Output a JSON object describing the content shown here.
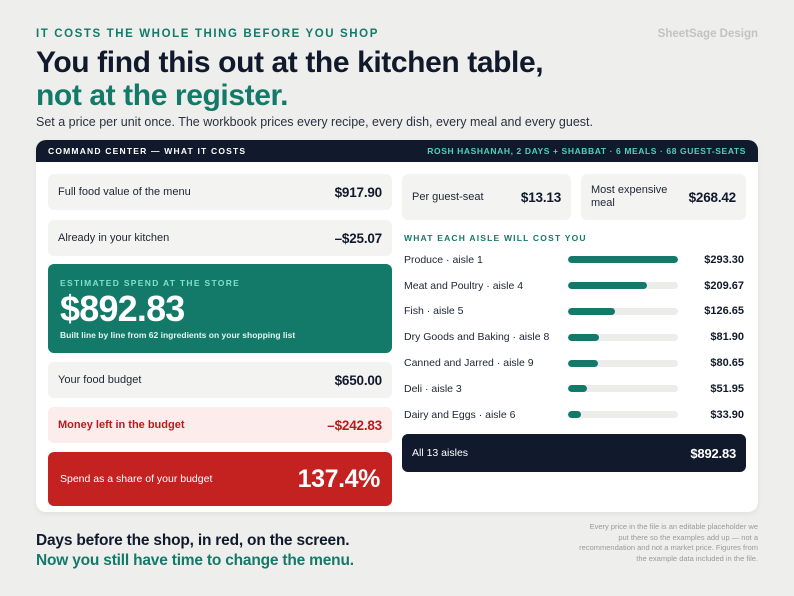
{
  "header": {
    "eyebrow": "IT COSTS THE WHOLE THING BEFORE YOU SHOP",
    "brand": "SheetSage Design",
    "headline_line1": "You find this out at the kitchen table,",
    "headline_line2": "not at the register.",
    "subtitle": "Set a price per unit once. The workbook prices every recipe, every dish, every meal and every guest."
  },
  "panel": {
    "title": "COMMAND CENTER — WHAT IT COSTS",
    "context": "ROSH HASHANAH, 2 DAYS + SHABBAT · 6 MEALS · 68 GUEST-SEATS"
  },
  "left": {
    "full_value": {
      "label": "Full food value of the menu",
      "value": "$917.90"
    },
    "in_kitchen": {
      "label": "Already in your kitchen",
      "value": "–$25.07"
    },
    "estimate": {
      "caption": "ESTIMATED SPEND AT THE STORE",
      "value": "$892.83",
      "note": "Built line by line from 62 ingredients on your shopping list"
    },
    "budget": {
      "label": "Your food budget",
      "value": "$650.00"
    },
    "money_left": {
      "label": "Money left in the budget",
      "value": "–$242.83"
    },
    "share": {
      "label": "Spend as a share of your budget",
      "value": "137.4%"
    }
  },
  "right": {
    "per_seat": {
      "label": "Per guest-seat",
      "value": "$13.13"
    },
    "most_expensive": {
      "label": "Most expensive meal",
      "value": "$268.42"
    },
    "aisle_caption": "WHAT EACH AISLE WILL COST YOU",
    "aisles": [
      {
        "name": "Produce · aisle 1",
        "value": "$293.30",
        "amount": 293.3
      },
      {
        "name": "Meat and Poultry · aisle 4",
        "value": "$209.67",
        "amount": 209.67
      },
      {
        "name": "Fish · aisle 5",
        "value": "$126.65",
        "amount": 126.65
      },
      {
        "name": "Dry Goods and Baking · aisle 8",
        "value": "$81.90",
        "amount": 81.9
      },
      {
        "name": "Canned and Jarred · aisle 9",
        "value": "$80.65",
        "amount": 80.65
      },
      {
        "name": "Deli · aisle 3",
        "value": "$51.95",
        "amount": 51.95
      },
      {
        "name": "Dairy and Eggs · aisle 6",
        "value": "$33.90",
        "amount": 33.9
      }
    ],
    "total": {
      "label": "All 13 aisles",
      "value": "$892.83"
    }
  },
  "footer": {
    "line1": "Days before the shop, in red, on the screen.",
    "line2": "Now you still have time to change the menu.",
    "disclaimer": "Every price in the file is an editable placeholder we put there so the examples add up — not a recommendation and not a market price. Figures from the example data included in the file."
  },
  "colors": {
    "accent": "#137a6a",
    "navy": "#111a2c",
    "alert": "#c42121",
    "alert_bg": "#fdecec"
  }
}
